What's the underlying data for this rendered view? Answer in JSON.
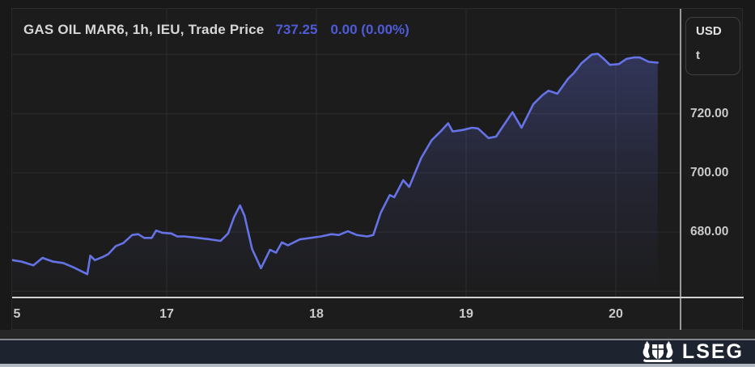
{
  "header": {
    "title": "GAS OIL MAR6, 1h, IEU, Trade Price",
    "last_price": "737.25",
    "change": "0.00 (0.00%)"
  },
  "unit_box": {
    "currency": "USD",
    "unit": "t"
  },
  "footer": {
    "brand": "LSEG"
  },
  "colors": {
    "line": "#6573e6",
    "accent_text": "#4f5bd8",
    "grid": "#2d2d2d",
    "axis_line": "#d2d2d2",
    "label": "#c9c9c9",
    "panel_bg": "#1c1c1c",
    "footer_bar": "#1e2330",
    "fill_top": "rgba(100,112,230,0.30)",
    "fill_mid": "rgba(100,112,230,0.10)",
    "fill_bottom": "rgba(100,112,230,0)"
  },
  "chart_data": {
    "type": "line",
    "title": "GAS OIL MAR6, 1h, IEU, Trade Price",
    "instrument": "GAS OIL MAR6",
    "interval": "1h",
    "venue": "IEU",
    "field": "Trade Price",
    "last_price": 737.25,
    "change": 0.0,
    "change_pct": 0.0,
    "unit": "USD / t",
    "legend_position": "none",
    "grid": true,
    "xlabel": "",
    "ylabel": "",
    "xlim_days": [
      15.95,
      20.45
    ],
    "ylim": [
      654,
      747
    ],
    "x_ticks": [
      {
        "label": "5",
        "day": 16
      },
      {
        "label": "17",
        "day": 17
      },
      {
        "label": "18",
        "day": 18
      },
      {
        "label": "19",
        "day": 19
      },
      {
        "label": "20",
        "day": 20
      }
    ],
    "x_gridline_days": [
      17,
      18,
      19,
      20
    ],
    "y_ticks_labeled": [
      {
        "label": "720.00",
        "value": 720
      },
      {
        "label": "700.00",
        "value": 700
      },
      {
        "label": "680.00",
        "value": 680
      }
    ],
    "y_gridline_values": [
      740,
      720,
      700,
      680,
      660
    ],
    "series": [
      {
        "name": "Trade Price",
        "points": [
          [
            15.97,
            670.5
          ],
          [
            16.03,
            670.0
          ],
          [
            16.11,
            668.75
          ],
          [
            16.17,
            671.25
          ],
          [
            16.24,
            670.0
          ],
          [
            16.31,
            669.5
          ],
          [
            16.38,
            668.0
          ],
          [
            16.47,
            665.75
          ],
          [
            16.49,
            672.0
          ],
          [
            16.52,
            670.5
          ],
          [
            16.57,
            671.5
          ],
          [
            16.61,
            672.5
          ],
          [
            16.66,
            675.25
          ],
          [
            16.71,
            676.25
          ],
          [
            16.77,
            679.0
          ],
          [
            16.81,
            679.25
          ],
          [
            16.85,
            678.0
          ],
          [
            16.9,
            678.0
          ],
          [
            16.93,
            680.5
          ],
          [
            16.97,
            679.75
          ],
          [
            17.03,
            679.5
          ],
          [
            17.07,
            678.5
          ],
          [
            17.12,
            678.5
          ],
          [
            17.21,
            678.0
          ],
          [
            17.29,
            677.5
          ],
          [
            17.36,
            677.0
          ],
          [
            17.41,
            679.5
          ],
          [
            17.45,
            685.0
          ],
          [
            17.49,
            689.0
          ],
          [
            17.52,
            685.5
          ],
          [
            17.57,
            674.25
          ],
          [
            17.63,
            667.75
          ],
          [
            17.69,
            674.0
          ],
          [
            17.73,
            673.0
          ],
          [
            17.77,
            676.5
          ],
          [
            17.81,
            675.5
          ],
          [
            17.89,
            677.5
          ],
          [
            17.96,
            678.0
          ],
          [
            18.03,
            678.5
          ],
          [
            18.1,
            679.25
          ],
          [
            18.15,
            679.0
          ],
          [
            18.21,
            680.25
          ],
          [
            18.27,
            679.0
          ],
          [
            18.34,
            678.5
          ],
          [
            18.38,
            679.0
          ],
          [
            18.43,
            686.5
          ],
          [
            18.49,
            692.5
          ],
          [
            18.52,
            691.75
          ],
          [
            18.58,
            697.5
          ],
          [
            18.62,
            695.25
          ],
          [
            18.7,
            705.0
          ],
          [
            18.77,
            711.0
          ],
          [
            18.83,
            714.0
          ],
          [
            18.88,
            716.75
          ],
          [
            18.91,
            714.0
          ],
          [
            18.98,
            714.5
          ],
          [
            19.04,
            715.25
          ],
          [
            19.08,
            715.0
          ],
          [
            19.15,
            711.75
          ],
          [
            19.2,
            712.25
          ],
          [
            19.31,
            720.5
          ],
          [
            19.37,
            715.25
          ],
          [
            19.45,
            723.25
          ],
          [
            19.51,
            726.25
          ],
          [
            19.55,
            727.75
          ],
          [
            19.61,
            726.75
          ],
          [
            19.68,
            731.75
          ],
          [
            19.72,
            733.75
          ],
          [
            19.77,
            737.0
          ],
          [
            19.84,
            740.0
          ],
          [
            19.88,
            740.25
          ],
          [
            19.92,
            738.5
          ],
          [
            19.96,
            736.5
          ],
          [
            20.02,
            736.75
          ],
          [
            20.07,
            738.5
          ],
          [
            20.12,
            739.0
          ],
          [
            20.16,
            739.0
          ],
          [
            20.22,
            737.5
          ],
          [
            20.28,
            737.25
          ]
        ]
      }
    ]
  }
}
